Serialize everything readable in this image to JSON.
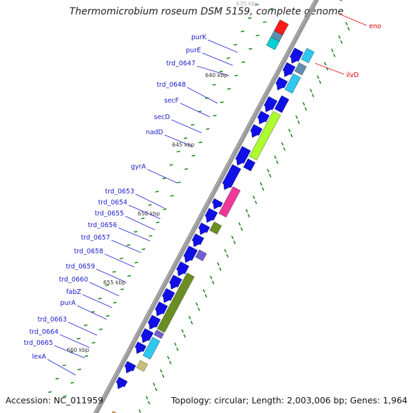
{
  "header": {
    "title": "Thermomicrobium roseum DSM 5159, complete genome"
  },
  "footer": {
    "accession": "Accession: NC_011959",
    "summary": "Topology: circular; Length: 2,003,006 bp; Genes: 1,964"
  },
  "colors": {
    "backbone": "#9a9a9a",
    "forward_strand": "#1010e6",
    "label_blue": "#1a1acc",
    "label_red": "#e00000",
    "tick_green": "#1b8a1b",
    "purine": "#2cc8f0",
    "gyrA": "#f0389a",
    "olive": "#6b8e23",
    "khaki": "#c8c07a",
    "purple": "#7060d0",
    "lime": "#adff2f",
    "steel": "#6090b0",
    "eno": "#ff1a1a"
  },
  "position_marks": [
    "635 kbp",
    "640 kbp",
    "645 kbp",
    "650 kbp",
    "655 kbp",
    "660 kbp"
  ],
  "gene_labels_left": [
    "purK",
    "purE",
    "trd_0647",
    "trd_0648",
    "secF",
    "secD",
    "nadD",
    "gyrA",
    "trd_0653",
    "trd_0654",
    "trd_0655",
    "trd_0656",
    "trd_0657",
    "trd_0658",
    "trd_0659",
    "trd_0660",
    "fabZ",
    "purA",
    "trd_0663",
    "trd_0664",
    "trd_0665",
    "lexA"
  ],
  "gene_labels_right": [
    "eno",
    "ilvD"
  ]
}
